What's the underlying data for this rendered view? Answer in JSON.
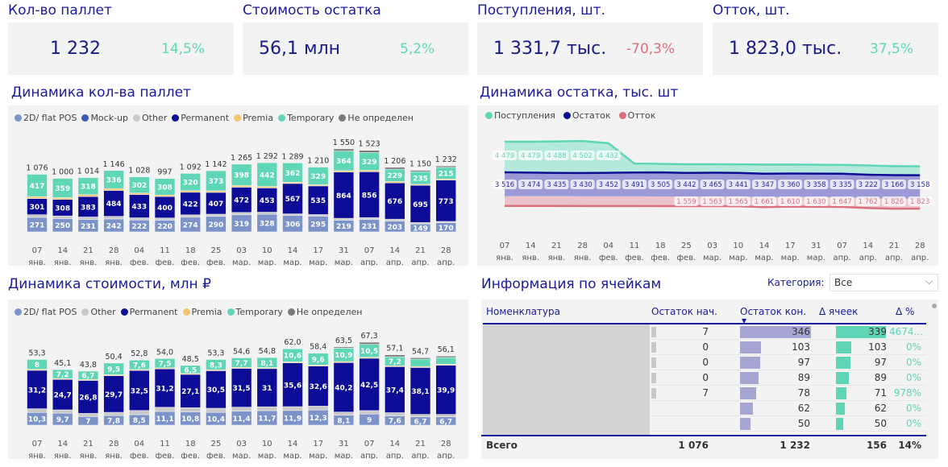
{
  "colors": {
    "flat_pos": "#7b93c9",
    "mock_up": "#3d5bb5",
    "other": "#c9c9c9",
    "permanent": "#0c0c96",
    "premia": "#f2c46d",
    "temporary": "#5fd6b5",
    "undefined": "#7a7a7a",
    "positive": "#5fd6b5",
    "negative": "#d9707e",
    "title": "#1a1a9c"
  },
  "kpis": [
    {
      "title": "Кол-во паллет",
      "value": "1 232",
      "delta": "14,5%",
      "trend": "positive"
    },
    {
      "title": "Стоимость остатка",
      "value": "56,1 млн",
      "delta": "5,2%",
      "trend": "positive"
    },
    {
      "title": "Поступления, шт.",
      "value": "1 331,7 тыс.",
      "delta": "-70,3%",
      "trend": "negative"
    },
    {
      "title": "Отток, шт.",
      "value": "1 823,0 тыс.",
      "delta": "37,5%",
      "trend": "positive"
    }
  ],
  "chart_data": [
    {
      "type": "bar",
      "stacked": true,
      "title": "Динамика кол-ва паллет",
      "legend_position": "top-left",
      "categories": [
        [
          "07",
          "янв."
        ],
        [
          "14",
          "янв."
        ],
        [
          "21",
          "янв."
        ],
        [
          "28",
          "янв."
        ],
        [
          "04",
          "фев."
        ],
        [
          "11",
          "фев."
        ],
        [
          "18",
          "фев."
        ],
        [
          "25",
          "фев."
        ],
        [
          "03",
          "мар."
        ],
        [
          "10",
          "мар."
        ],
        [
          "14",
          "мар."
        ],
        [
          "17",
          "мар."
        ],
        [
          "31",
          "мар."
        ],
        [
          "07",
          "апр."
        ],
        [
          "14",
          "апр."
        ],
        [
          "21",
          "апр."
        ],
        [
          "28",
          "апр."
        ]
      ],
      "totals": [
        "1 076",
        "1 000",
        "1 014",
        "1 146",
        "1 028",
        "997",
        "1 092",
        "1 142",
        "1 265",
        "1 292",
        "1 289",
        "1 210",
        "1 550",
        "1 523",
        "1 206",
        "1 150",
        "1 232"
      ],
      "series": [
        {
          "name": "2D/ flat POS",
          "key": "flat_pos",
          "labeled": true,
          "values": [
            271,
            250,
            231,
            242,
            222,
            220,
            274,
            290,
            319,
            328,
            306,
            295,
            219,
            231,
            203,
            149,
            170
          ]
        },
        {
          "name": "Mock-up",
          "key": "mock_up",
          "values": [
            0,
            0,
            0,
            0,
            0,
            0,
            0,
            0,
            0,
            0,
            0,
            0,
            0,
            0,
            0,
            0,
            0
          ]
        },
        {
          "name": "Other",
          "key": "other",
          "values": [
            50,
            48,
            47,
            48,
            41,
            40,
            44,
            41,
            44,
            40,
            31,
            29,
            35,
            36,
            35,
            25,
            26
          ]
        },
        {
          "name": "Permanent",
          "key": "permanent",
          "labeled": true,
          "values": [
            301,
            308,
            383,
            484,
            433,
            400,
            422,
            407,
            472,
            453,
            567,
            535,
            864,
            856,
            676,
            695,
            773
          ]
        },
        {
          "name": "Premia",
          "key": "premia",
          "values": [
            37,
            35,
            35,
            36,
            30,
            29,
            32,
            31,
            32,
            29,
            23,
            22,
            28,
            28,
            28,
            21,
            21
          ]
        },
        {
          "name": "Temporary",
          "key": "temporary",
          "labeled": true,
          "values": [
            417,
            359,
            318,
            336,
            302,
            308,
            320,
            373,
            398,
            442,
            362,
            329,
            364,
            329,
            229,
            235,
            215
          ]
        },
        {
          "name": "Не определен",
          "key": "undefined",
          "values": [
            0,
            0,
            0,
            0,
            0,
            0,
            0,
            0,
            0,
            0,
            0,
            0,
            40,
            43,
            35,
            25,
            27
          ]
        }
      ]
    },
    {
      "type": "area",
      "title": "Динамика остатка, тыс. шт",
      "legend_position": "top-left",
      "categories": [
        [
          "07",
          "янв."
        ],
        [
          "14",
          "янв."
        ],
        [
          "21",
          "янв."
        ],
        [
          "28",
          "янв."
        ],
        [
          "04",
          "фев."
        ],
        [
          "11",
          "фев."
        ],
        [
          "18",
          "фев."
        ],
        [
          "25",
          "фев."
        ],
        [
          "03",
          "мар."
        ],
        [
          "10",
          "мар."
        ],
        [
          "14",
          "мар."
        ],
        [
          "17",
          "мар."
        ],
        [
          "31",
          "мар."
        ],
        [
          "07",
          "апр."
        ],
        [
          "14",
          "апр."
        ],
        [
          "21",
          "апр."
        ],
        [
          "28",
          "апр."
        ]
      ],
      "series": [
        {
          "name": "Поступления",
          "key": "temporary",
          "values": [
            4479,
            4479,
            4488,
            4502,
            4432,
            3800,
            3790,
            3780,
            3780,
            3775,
            3770,
            3770,
            3765,
            3760,
            3740,
            3720,
            3715
          ],
          "labels": [
            "4 479",
            "4 479",
            "4 488",
            "4 502",
            "4 432",
            null,
            null,
            null,
            null,
            null,
            null,
            null,
            null,
            null,
            null,
            null,
            null
          ]
        },
        {
          "name": "Остаток",
          "key": "permanent",
          "values": [
            3516,
            3474,
            3435,
            3430,
            3452,
            3491,
            3505,
            3442,
            3465,
            3441,
            3347,
            3360,
            3358,
            3335,
            3222,
            3166,
            3158
          ],
          "labels": [
            "3 516",
            "3 474",
            "3 435",
            "3 430",
            "3 452",
            "3 491",
            "3 505",
            "3 442",
            "3 465",
            "3 441",
            "3 347",
            "3 360",
            "3 358",
            "3 335",
            "3 222",
            "3 166",
            "3 158"
          ]
        },
        {
          "name": "Отток",
          "key": "negative",
          "values": [
            1540,
            1540,
            1540,
            1545,
            1545,
            1550,
            1555,
            1559,
            1563,
            1565,
            1661,
            1610,
            1630,
            1647,
            1762,
            1826,
            1823
          ],
          "labels": [
            null,
            null,
            null,
            null,
            null,
            null,
            null,
            "1 559",
            "1 563",
            "1 565",
            "1 661",
            "1 610",
            "1 630",
            "1 647",
            "1 762",
            "1 826",
            "1 823"
          ]
        }
      ]
    },
    {
      "type": "bar",
      "stacked": true,
      "title": "Динамика стоимости, млн ₽",
      "legend_position": "top-left",
      "categories": [
        [
          "07",
          "янв."
        ],
        [
          "14",
          "янв."
        ],
        [
          "21",
          "янв."
        ],
        [
          "28",
          "янв."
        ],
        [
          "04",
          "фев."
        ],
        [
          "11",
          "фев."
        ],
        [
          "18",
          "фев."
        ],
        [
          "25",
          "фев."
        ],
        [
          "03",
          "мар."
        ],
        [
          "10",
          "мар."
        ],
        [
          "14",
          "мар."
        ],
        [
          "17",
          "мар."
        ],
        [
          "31",
          "мар."
        ],
        [
          "07",
          "апр."
        ],
        [
          "14",
          "апр."
        ],
        [
          "21",
          "апр."
        ],
        [
          "28",
          "апр."
        ]
      ],
      "totals": [
        "53,3",
        "45,1",
        "43,8",
        "50,4",
        "52,8",
        "54,0",
        "48,5",
        "53,3",
        "54,6",
        "54,8",
        "62,0",
        "58,4",
        "63,5",
        "67,3",
        "57,1",
        "54,7",
        "56,1"
      ],
      "series": [
        {
          "name": "2D/ flat POS",
          "key": "flat_pos",
          "labeled": true,
          "values": [
            10.3,
            9.7,
            7.0,
            7.8,
            8.5,
            11.1,
            10.8,
            10.4,
            11.4,
            11.7,
            11.9,
            12.3,
            8.1,
            9.0,
            7.6,
            6.7,
            6.7
          ]
        },
        {
          "name": "Other",
          "key": "other",
          "values": [
            3.0,
            2.7,
            2.5,
            2.6,
            3.4,
            3.4,
            3.3,
            3.3,
            3.2,
            3.2,
            3.1,
            3.1,
            2.5,
            2.8,
            2.5,
            2.0,
            2.0
          ]
        },
        {
          "name": "Permanent",
          "key": "permanent",
          "labeled": true,
          "values": [
            31.2,
            24.7,
            26.8,
            29.7,
            32.5,
            31.2,
            27.1,
            30.5,
            31.5,
            31.0,
            35.6,
            32.6,
            40.2,
            42.5,
            37.4,
            38.1,
            39.9
          ]
        },
        {
          "name": "Premia",
          "key": "premia",
          "values": [
            0.8,
            0.8,
            0.8,
            0.8,
            0.8,
            0.8,
            0.8,
            0.8,
            0.8,
            0.8,
            0.8,
            0.8,
            0.8,
            0.8,
            0.8,
            0.8,
            0.8
          ]
        },
        {
          "name": "Temporary",
          "key": "temporary",
          "labeled": true,
          "values": [
            8.0,
            7.2,
            6.7,
            9.5,
            7.6,
            7.5,
            6.5,
            8.3,
            7.7,
            8.1,
            10.6,
            9.6,
            10.9,
            10.5,
            7.2,
            5.9,
            5.5
          ]
        },
        {
          "name": "Не определен",
          "key": "undefined",
          "values": [
            0,
            0,
            0,
            0,
            0,
            0,
            0,
            0,
            0,
            0,
            0,
            0,
            1.0,
            1.7,
            1.6,
            1.2,
            1.2
          ]
        }
      ]
    }
  ],
  "cells": {
    "title": "Информация по ячейкам",
    "category_label": "Категория:",
    "category_value": "Все",
    "columns": [
      "Номенклатура",
      "Остаток нач.",
      "Остаток кон.",
      "Δ ячеек",
      "Δ %"
    ],
    "rows": [
      {
        "start": "7",
        "end": 346,
        "delta": 339,
        "pct": "4674..."
      },
      {
        "start": "0",
        "end": 103,
        "delta": 103,
        "pct": "0%"
      },
      {
        "start": "0",
        "end": 97,
        "delta": 97,
        "pct": "0%"
      },
      {
        "start": "0",
        "end": 89,
        "delta": 89,
        "pct": "0%"
      },
      {
        "start": "7",
        "end": 78,
        "delta": 71,
        "pct": "978%"
      },
      {
        "start": "",
        "end": 62,
        "delta": 62,
        "pct": "0%"
      },
      {
        "start": "",
        "end": 50,
        "delta": 50,
        "pct": "0%"
      }
    ],
    "total": {
      "label": "Всего",
      "start": "1 076",
      "end": "1 232",
      "delta": "156",
      "pct": "14%"
    }
  }
}
